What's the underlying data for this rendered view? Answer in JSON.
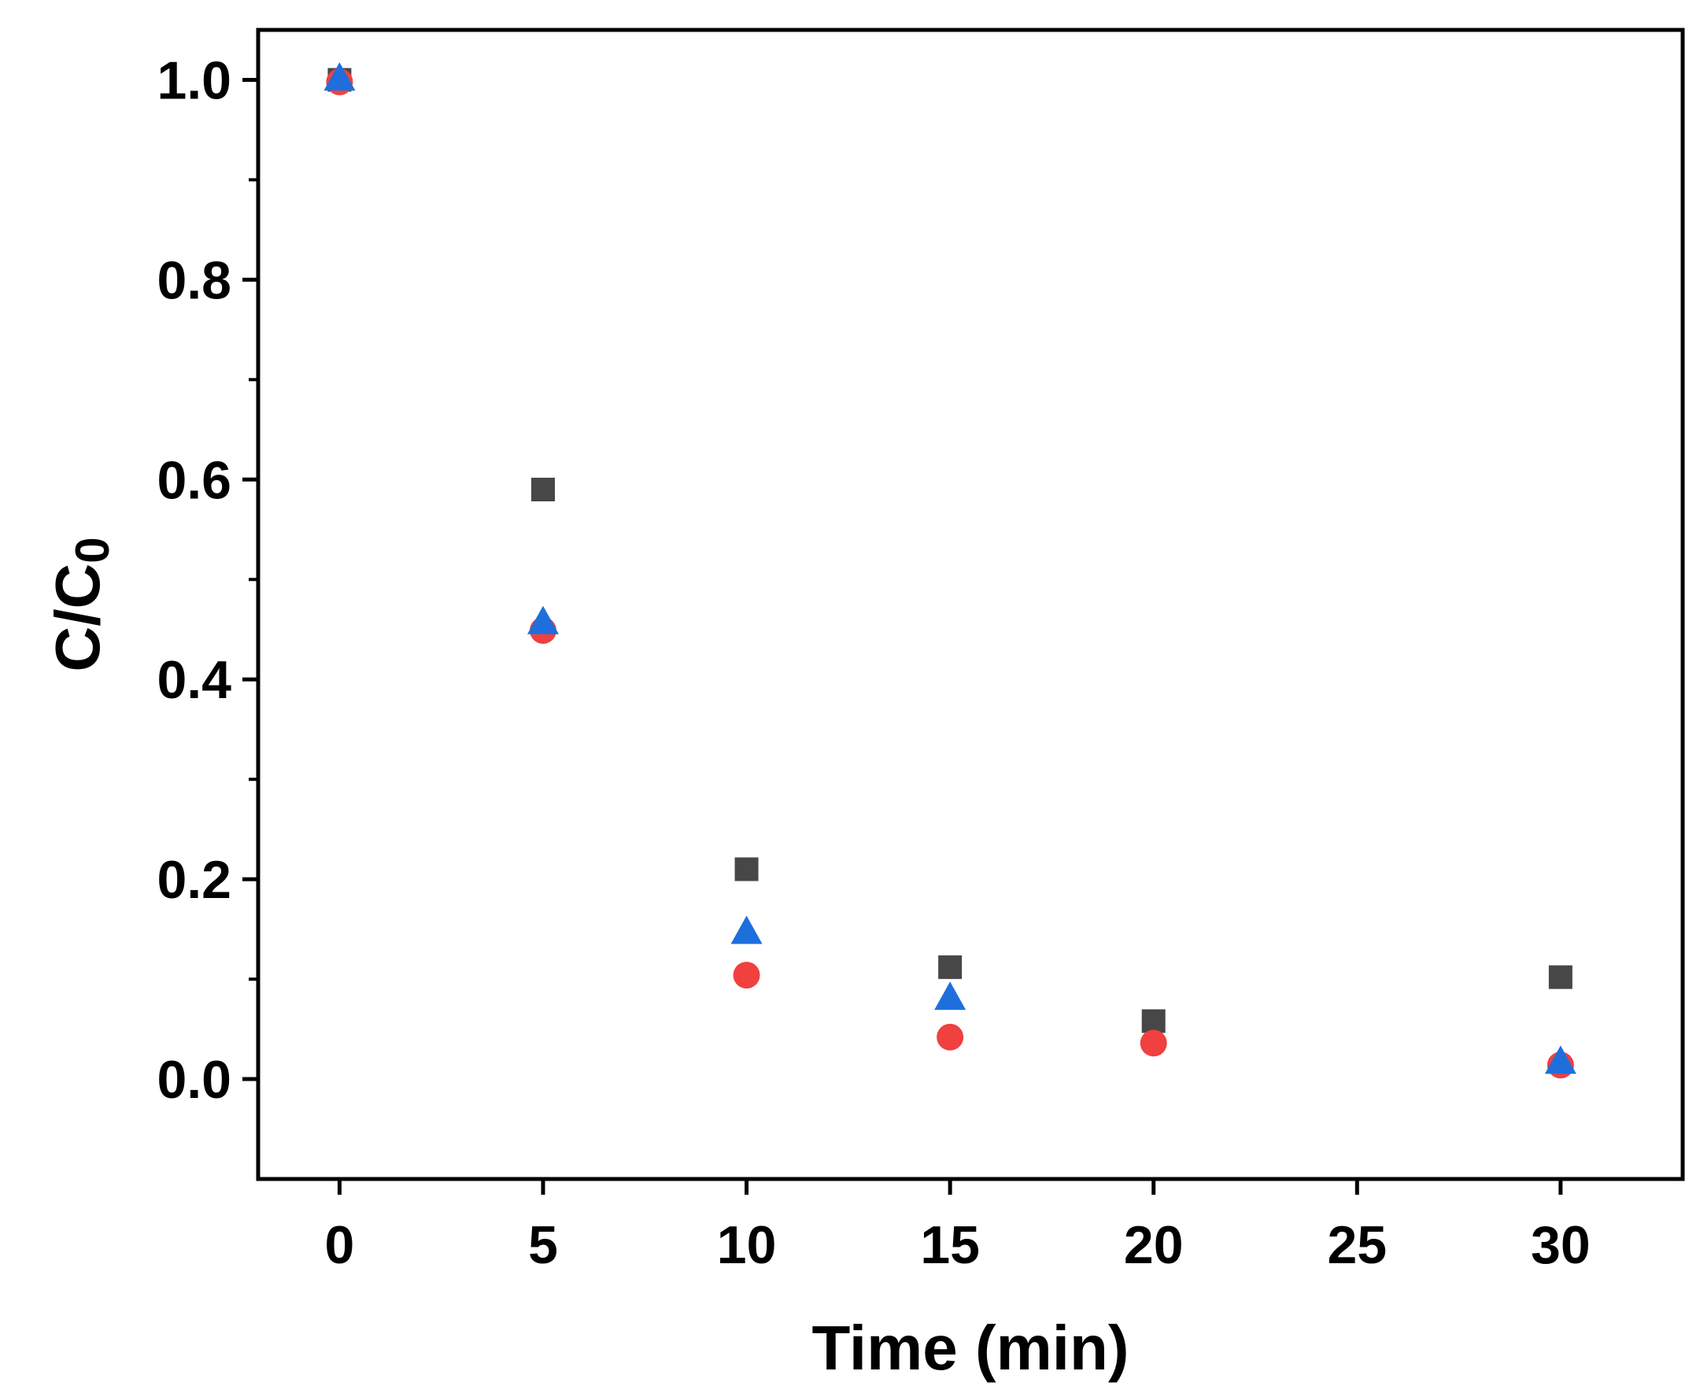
{
  "chart_data": {
    "type": "scatter",
    "xlabel": "Time (min)",
    "ylabel": "C/C",
    "ylabel_subscript": "0",
    "xlim": [
      -2,
      33
    ],
    "ylim": [
      -0.1,
      1.05
    ],
    "x_ticks": [
      0,
      5,
      10,
      15,
      20,
      25,
      30
    ],
    "x_tick_labels": [
      "0",
      "5",
      "10",
      "15",
      "20",
      "25",
      "30"
    ],
    "y_ticks": [
      0.0,
      0.2,
      0.4,
      0.6,
      0.8,
      1.0
    ],
    "y_tick_labels": [
      "0.0",
      "0.2",
      "0.4",
      "0.6",
      "0.8",
      "1.0"
    ],
    "y_minor_ticks": [
      0.1,
      0.3,
      0.5,
      0.7,
      0.9
    ],
    "grid": false,
    "legend": "none",
    "series": [
      {
        "marker": "square",
        "color": "#474747",
        "x": [
          0,
          5,
          10,
          15,
          20,
          30
        ],
        "y": [
          1.0,
          0.59,
          0.21,
          0.112,
          0.058,
          0.102
        ]
      },
      {
        "marker": "circle",
        "color": "#f04040",
        "x": [
          0,
          5,
          10,
          15,
          20,
          30
        ],
        "y": [
          0.998,
          0.449,
          0.104,
          0.042,
          0.036,
          0.014
        ]
      },
      {
        "marker": "triangle",
        "color": "#1e6fdc",
        "x": [
          0,
          5,
          10,
          15,
          30
        ],
        "y": [
          1.0,
          0.456,
          0.146,
          0.08,
          0.016
        ]
      }
    ]
  }
}
